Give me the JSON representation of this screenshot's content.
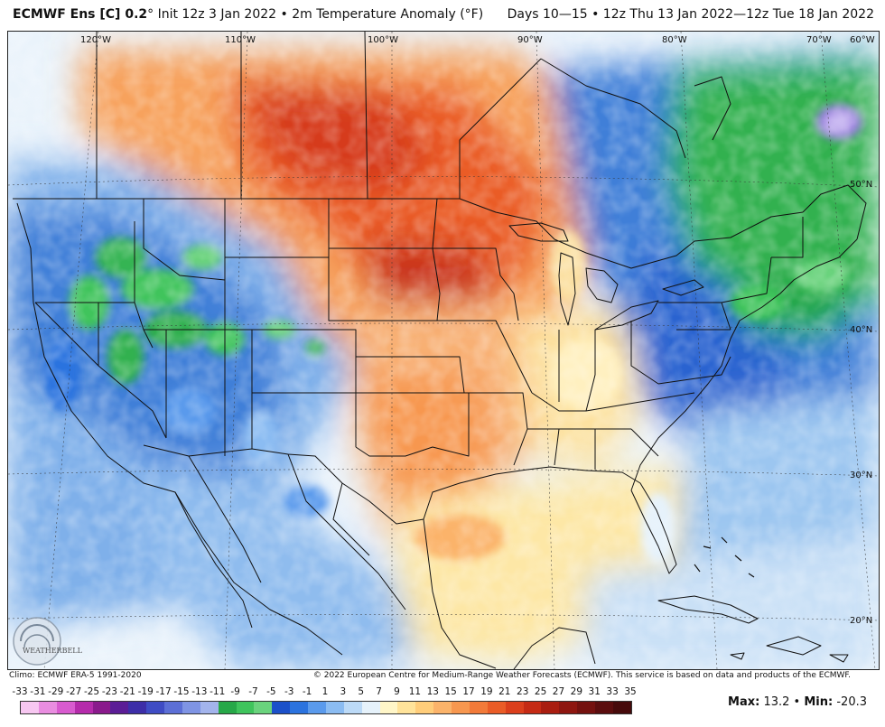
{
  "header": {
    "model": "ECMWF Ens [C] 0.2",
    "degree": "°",
    "init": "Init 12z 3 Jan 2022",
    "bullet": "•",
    "variable": "2m Temperature Anomaly (°F)",
    "range": "Days 10—15 • 12z Thu 13 Jan 2022—12z Tue 18 Jan 2022"
  },
  "map": {
    "lon_labels": [
      "120°W",
      "110°W",
      "100°W",
      "90°W",
      "80°W",
      "70°W",
      "60°W"
    ],
    "lat_labels": [
      "50°N",
      "40°N",
      "30°N",
      "20°N"
    ],
    "logo_text": "WEATHERBELL"
  },
  "footer": {
    "climo": "Climo: ECMWF ERA-5 1991-2020",
    "copyright": "© 2022 European Centre for Medium-Range Weather Forecasts (ECMWF). This service is based on data and products of the ECMWF."
  },
  "legend": {
    "ticks": [
      "-33",
      "-31",
      "-29",
      "-27",
      "-25",
      "-23",
      "-21",
      "-19",
      "-17",
      "-15",
      "-13",
      "-11",
      "-9",
      "-7",
      "-5",
      "-3",
      "-1",
      "1",
      "3",
      "5",
      "7",
      "9",
      "11",
      "13",
      "15",
      "17",
      "19",
      "21",
      "23",
      "25",
      "27",
      "29",
      "31",
      "33",
      "35"
    ],
    "colors": [
      "#f7c7f1",
      "#e98de0",
      "#d85bcf",
      "#b52bab",
      "#8a1a8c",
      "#5b1d96",
      "#3d2ea8",
      "#3f4cc4",
      "#5c6fd6",
      "#7f94e4",
      "#a3b4ec",
      "#27a848",
      "#3fc45c",
      "#6ad37d",
      "#1b50c9",
      "#2b73df",
      "#5a9aec",
      "#8bbcf2",
      "#bcdaf7",
      "#e6f2fb",
      "#fff6c8",
      "#ffe39a",
      "#ffcd7a",
      "#fbb36a",
      "#f7974f",
      "#f27a39",
      "#ea5c27",
      "#db3f1c",
      "#c52a14",
      "#a91d10",
      "#8e1610",
      "#74110f",
      "#5b0d0e",
      "#460a0b"
    ]
  },
  "stats": {
    "max_label": "Max:",
    "max_value": "13.2",
    "sep": "•",
    "min_label": "Min:",
    "min_value": "-20.3"
  }
}
